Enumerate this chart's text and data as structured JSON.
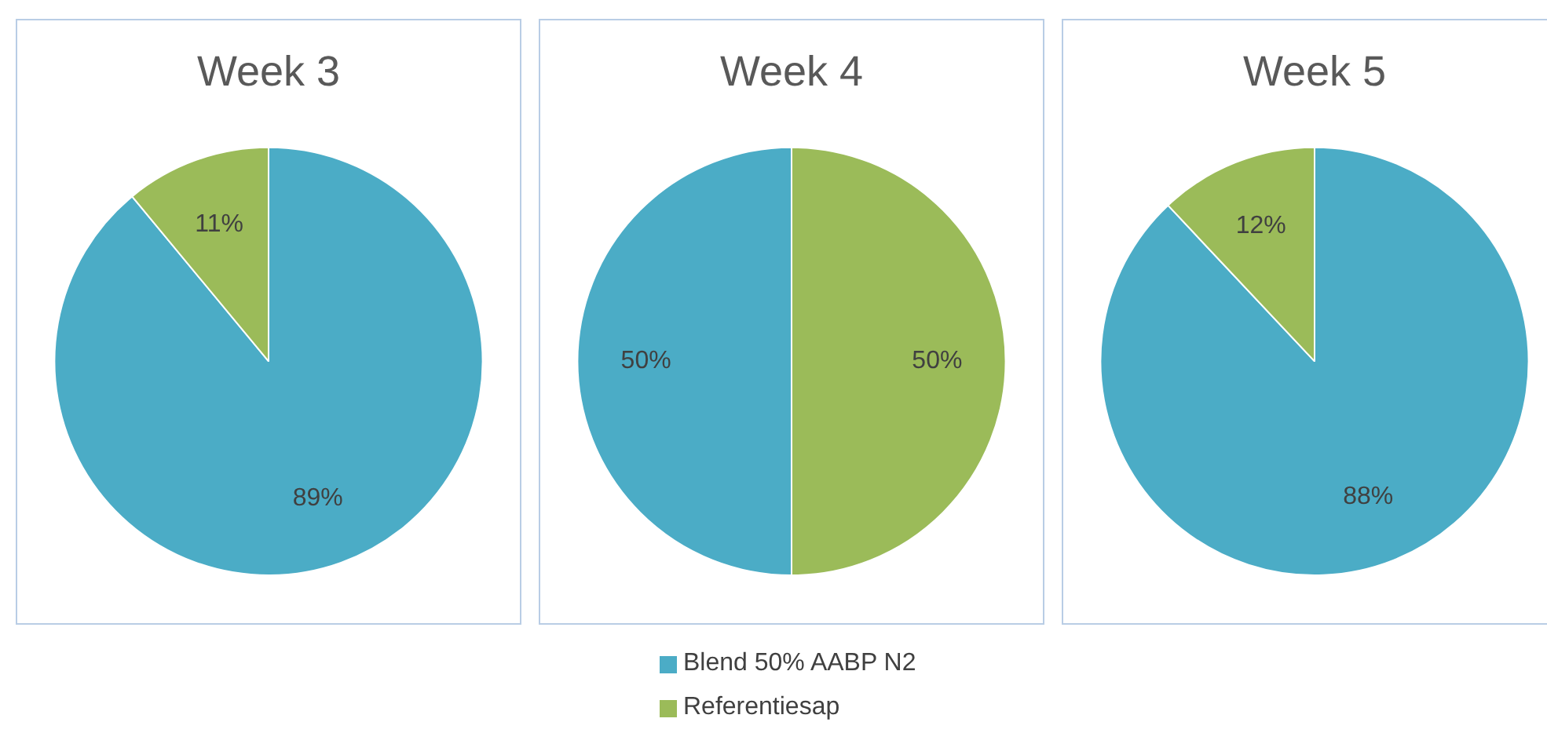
{
  "chart_data": [
    {
      "type": "pie",
      "title": "Week 3",
      "categories": [
        "Blend 50% AABP N2",
        "Referentiesap"
      ],
      "values": [
        89,
        11
      ],
      "colors": [
        "#4bacc6",
        "#9bbb59"
      ],
      "value_labels": [
        "89%",
        "11%"
      ],
      "legend": "bottom"
    },
    {
      "type": "pie",
      "title": "Week 4",
      "categories": [
        null,
        null
      ],
      "values": [
        50,
        50
      ],
      "colors": [
        "#9bbb59",
        "#4bacc6"
      ],
      "value_labels": [
        "50%",
        "50%"
      ]
    },
    {
      "type": "pie",
      "title": "Week 5",
      "categories": [
        null,
        null
      ],
      "values": [
        88,
        12
      ],
      "colors": [
        "#4bacc6",
        "#9bbb59"
      ],
      "value_labels": [
        "88%",
        "12%"
      ]
    }
  ]
}
